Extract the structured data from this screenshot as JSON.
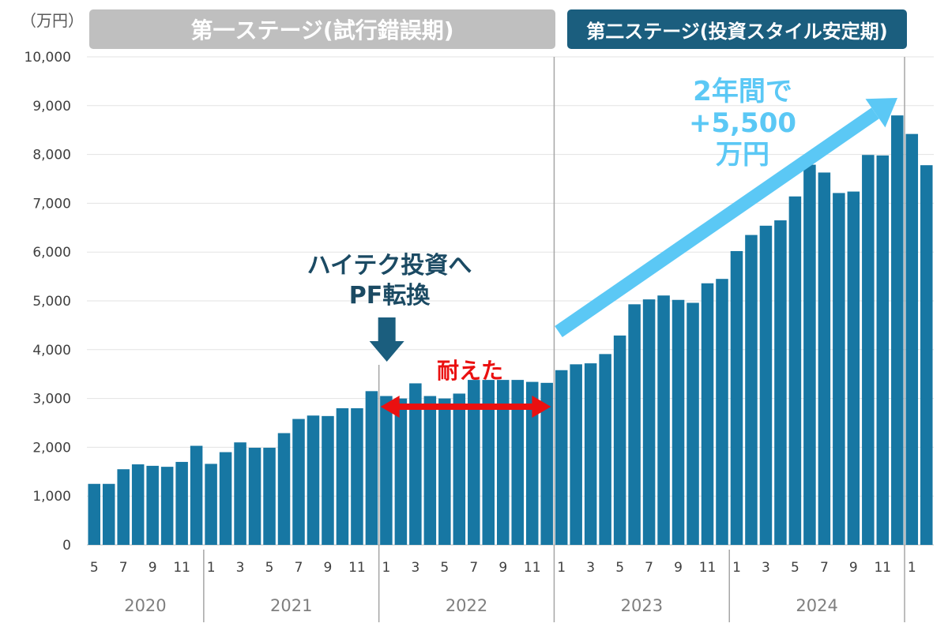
{
  "unit_label": "（万円）",
  "stages": [
    {
      "label": "第一ステージ(試行錯誤期)"
    },
    {
      "label": "第二ステージ(投資スタイル安定期)"
    }
  ],
  "annotations": {
    "switch": [
      "ハイテク投資へ",
      "PF転換"
    ],
    "endure": "耐えた",
    "gain": [
      "2年間で",
      "+5,500",
      "万円"
    ]
  },
  "colors": {
    "bar": "#1777a3",
    "stage1": "#bfbfbf",
    "stage2": "#1b5e7e",
    "switch_text": "#1b4a63",
    "switch_arrow": "#1b5e7e",
    "endure": "#ea1010",
    "gain": "#5bc8f5"
  },
  "chart_data": {
    "type": "bar",
    "ylabel": "（万円）",
    "ylim": [
      0,
      10000
    ],
    "yticks": [
      0,
      1000,
      2000,
      3000,
      4000,
      5000,
      6000,
      7000,
      8000,
      9000,
      10000
    ],
    "ytick_labels": [
      "0",
      "1,000",
      "2,000",
      "3,000",
      "4,000",
      "5,000",
      "6,000",
      "7,000",
      "8,000",
      "9,000",
      "10,000"
    ],
    "grid": true,
    "categories": [
      "2020-05",
      "2020-06",
      "2020-07",
      "2020-08",
      "2020-09",
      "2020-10",
      "2020-11",
      "2020-12",
      "2021-01",
      "2021-02",
      "2021-03",
      "2021-04",
      "2021-05",
      "2021-06",
      "2021-07",
      "2021-08",
      "2021-09",
      "2021-10",
      "2021-11",
      "2021-12",
      "2022-01",
      "2022-02",
      "2022-03",
      "2022-04",
      "2022-05",
      "2022-06",
      "2022-07",
      "2022-08",
      "2022-09",
      "2022-10",
      "2022-11",
      "2022-12",
      "2023-01",
      "2023-02",
      "2023-03",
      "2023-04",
      "2023-05",
      "2023-06",
      "2023-07",
      "2023-08",
      "2023-09",
      "2023-10",
      "2023-11",
      "2023-12",
      "2024-01",
      "2024-02",
      "2024-03",
      "2024-04",
      "2024-05",
      "2024-06",
      "2024-07",
      "2024-08",
      "2024-09",
      "2024-10",
      "2024-11",
      "2024-12",
      "2025-01",
      "2025-02"
    ],
    "values": [
      1250,
      1250,
      1550,
      1650,
      1620,
      1600,
      1700,
      2030,
      1660,
      1900,
      2100,
      1990,
      1990,
      2290,
      2580,
      2650,
      2640,
      2800,
      2800,
      3150,
      3050,
      3000,
      3310,
      3050,
      3000,
      3100,
      3380,
      3380,
      3380,
      3380,
      3340,
      3320,
      3580,
      3700,
      3720,
      3910,
      4290,
      4930,
      5030,
      5110,
      5020,
      4960,
      5360,
      5450,
      6020,
      6350,
      6540,
      6650,
      7140,
      7790,
      7630,
      7210,
      7240,
      7990,
      7980,
      8800,
      8420,
      7780
    ],
    "month_labels": [
      "5",
      "",
      "7",
      "",
      "9",
      "",
      "11",
      "",
      "1",
      "",
      "3",
      "",
      "5",
      "",
      "7",
      "",
      "9",
      "",
      "11",
      "",
      "1",
      "",
      "3",
      "",
      "5",
      "",
      "7",
      "",
      "9",
      "",
      "11",
      "",
      "1",
      "",
      "3",
      "",
      "5",
      "",
      "7",
      "",
      "9",
      "",
      "11",
      "",
      "1",
      "",
      "3",
      "",
      "5",
      "",
      "7",
      "",
      "9",
      "",
      "11",
      "",
      "1",
      ""
    ],
    "years": [
      {
        "label": "2020",
        "start": 0,
        "end": 8
      },
      {
        "label": "2021",
        "start": 8,
        "end": 20
      },
      {
        "label": "2022",
        "start": 20,
        "end": 32
      },
      {
        "label": "2023",
        "start": 32,
        "end": 44
      },
      {
        "label": "2024",
        "start": 44,
        "end": 56
      }
    ],
    "stage_dividers": [
      32,
      56
    ],
    "switch_index": 20
  }
}
